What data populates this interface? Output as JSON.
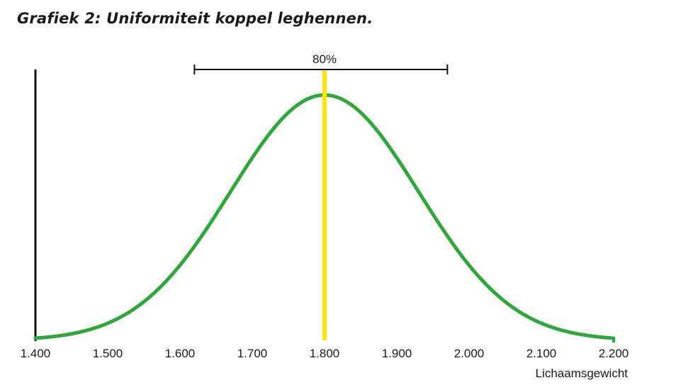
{
  "title": "Grafiek 2: Uniformiteit koppel leghennen.",
  "colors": {
    "curve": "#2ea83a",
    "mean_line": "#ffe600",
    "axis": "#111111",
    "text": "#1a1a1a"
  },
  "chart_data": {
    "type": "line",
    "title": "Grafiek 2: Uniformiteit koppel leghennen.",
    "xlabel": "Lichaamsgewicht",
    "ylabel": "",
    "xlim": [
      1400,
      2200
    ],
    "ylim": [
      0,
      1.1
    ],
    "grid": false,
    "x_tick_values": [
      1400,
      1500,
      1600,
      1700,
      1800,
      1900,
      2000,
      2100,
      2200
    ],
    "x_tick_labels": [
      "1.400",
      "1.500",
      "1.600",
      "1.700",
      "1.800",
      "1.900",
      "2.000",
      "2.100",
      "2.200"
    ],
    "series": [
      {
        "distribution": "normal",
        "mean": 1800,
        "stdev": 130,
        "peak": 1.0
      }
    ],
    "mean_marker": {
      "x": 1800
    },
    "range_marker": {
      "from": 1620,
      "to": 1970,
      "label": "80%"
    }
  }
}
